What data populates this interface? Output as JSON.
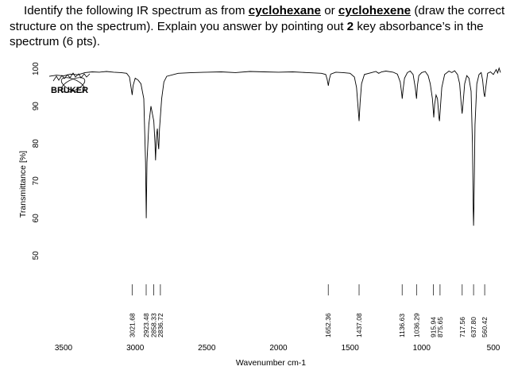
{
  "question": {
    "line1_pre": "Identify the following IR spectrum as from ",
    "option_a": "cyclohexane",
    "line1_mid": " or ",
    "option_b": "cyclohexene",
    "line1_post": " (draw the correct",
    "line2": "structure on the spectrum). Explain you answer by pointing out ",
    "line2_bold": "2",
    "line2_post": " key absorbance’s in the",
    "line3": "spectrum (6 pts)."
  },
  "logo": {
    "text": "BRUKER"
  },
  "chart_data": {
    "type": "line",
    "xlabel": "Wavenumber cm-1",
    "ylabel": "Transmittance [%]",
    "x_reversed": true,
    "xlim": [
      3600,
      450
    ],
    "ylim": [
      44,
      101
    ],
    "x_ticks": [
      3500,
      3000,
      2500,
      2000,
      1500,
      1000,
      500
    ],
    "y_ticks": [
      50,
      60,
      70,
      80,
      90,
      100
    ],
    "peak_labels": [
      "3021.68",
      "2923.48",
      "2858.33",
      "2836.72",
      "1652.36",
      "1437.08",
      "1136.63",
      "1036.29",
      "915.94",
      "875.65",
      "717.56",
      "637.80",
      "560.42"
    ],
    "series": [
      {
        "points": [
          [
            3600,
            98.0
          ],
          [
            3550,
            98.3
          ],
          [
            3500,
            98.1
          ],
          [
            3450,
            98.6
          ],
          [
            3400,
            98.4
          ],
          [
            3350,
            99.0
          ],
          [
            3300,
            99.2
          ],
          [
            3250,
            99.1
          ],
          [
            3200,
            99.3
          ],
          [
            3150,
            99.1
          ],
          [
            3100,
            99.0
          ],
          [
            3060,
            98.8
          ],
          [
            3040,
            97.8
          ],
          [
            3025,
            94.0
          ],
          [
            3021,
            93.0
          ],
          [
            3015,
            95.5
          ],
          [
            3000,
            97.5
          ],
          [
            2980,
            97.0
          ],
          [
            2960,
            96.0
          ],
          [
            2940,
            92.0
          ],
          [
            2928,
            75.0
          ],
          [
            2923,
            60.0
          ],
          [
            2918,
            75.0
          ],
          [
            2905,
            85.0
          ],
          [
            2890,
            90.0
          ],
          [
            2870,
            86.0
          ],
          [
            2862,
            80.0
          ],
          [
            2858,
            75.5
          ],
          [
            2852,
            82.0
          ],
          [
            2845,
            84.0
          ],
          [
            2840,
            80.0
          ],
          [
            2836,
            78.5
          ],
          [
            2830,
            84.0
          ],
          [
            2815,
            92.0
          ],
          [
            2800,
            96.5
          ],
          [
            2780,
            98.0
          ],
          [
            2700,
            98.8
          ],
          [
            2600,
            99.0
          ],
          [
            2500,
            99.1
          ],
          [
            2400,
            99.2
          ],
          [
            2300,
            99.0
          ],
          [
            2200,
            99.3
          ],
          [
            2100,
            99.2
          ],
          [
            2000,
            99.1
          ],
          [
            1900,
            99.2
          ],
          [
            1800,
            99.0
          ],
          [
            1700,
            98.8
          ],
          [
            1670,
            98.5
          ],
          [
            1660,
            97.2
          ],
          [
            1652,
            95.5
          ],
          [
            1645,
            97.2
          ],
          [
            1635,
            98.6
          ],
          [
            1600,
            99.1
          ],
          [
            1550,
            99.0
          ],
          [
            1500,
            98.8
          ],
          [
            1470,
            97.8
          ],
          [
            1455,
            95.0
          ],
          [
            1445,
            90.0
          ],
          [
            1437,
            86.0
          ],
          [
            1430,
            91.0
          ],
          [
            1420,
            96.0
          ],
          [
            1400,
            98.5
          ],
          [
            1350,
            99.0
          ],
          [
            1320,
            99.3
          ],
          [
            1300,
            98.8
          ],
          [
            1280,
            99.2
          ],
          [
            1250,
            99.4
          ],
          [
            1200,
            99.1
          ],
          [
            1170,
            98.6
          ],
          [
            1150,
            96.5
          ],
          [
            1140,
            93.5
          ],
          [
            1136,
            92.0
          ],
          [
            1130,
            94.5
          ],
          [
            1120,
            97.5
          ],
          [
            1100,
            99.0
          ],
          [
            1080,
            99.4
          ],
          [
            1060,
            98.5
          ],
          [
            1045,
            95.0
          ],
          [
            1036,
            92.0
          ],
          [
            1030,
            95.5
          ],
          [
            1020,
            98.2
          ],
          [
            1000,
            99.0
          ],
          [
            975,
            99.3
          ],
          [
            955,
            98.2
          ],
          [
            940,
            96.0
          ],
          [
            925,
            92.0
          ],
          [
            916,
            87.0
          ],
          [
            910,
            90.5
          ],
          [
            900,
            93.0
          ],
          [
            890,
            92.0
          ],
          [
            880,
            87.0
          ],
          [
            876,
            86.0
          ],
          [
            870,
            89.5
          ],
          [
            860,
            95.0
          ],
          [
            840,
            98.5
          ],
          [
            810,
            99.4
          ],
          [
            790,
            99.0
          ],
          [
            770,
            99.5
          ],
          [
            750,
            98.5
          ],
          [
            735,
            96.0
          ],
          [
            725,
            91.0
          ],
          [
            718,
            88.0
          ],
          [
            712,
            90.5
          ],
          [
            700,
            96.0
          ],
          [
            685,
            98.2
          ],
          [
            670,
            97.5
          ],
          [
            655,
            94.0
          ],
          [
            646,
            80.0
          ],
          [
            640,
            62.0
          ],
          [
            638,
            58.0
          ],
          [
            635,
            63.0
          ],
          [
            628,
            85.0
          ],
          [
            615,
            96.0
          ],
          [
            600,
            98.5
          ],
          [
            585,
            99.0
          ],
          [
            575,
            97.0
          ],
          [
            566,
            93.5
          ],
          [
            560,
            92.5
          ],
          [
            554,
            94.5
          ],
          [
            540,
            98.8
          ],
          [
            520,
            99.2
          ],
          [
            500,
            98.5
          ],
          [
            480,
            99.8
          ],
          [
            470,
            98.9
          ],
          [
            460,
            100.2
          ],
          [
            450,
            99.0
          ]
        ]
      }
    ]
  }
}
